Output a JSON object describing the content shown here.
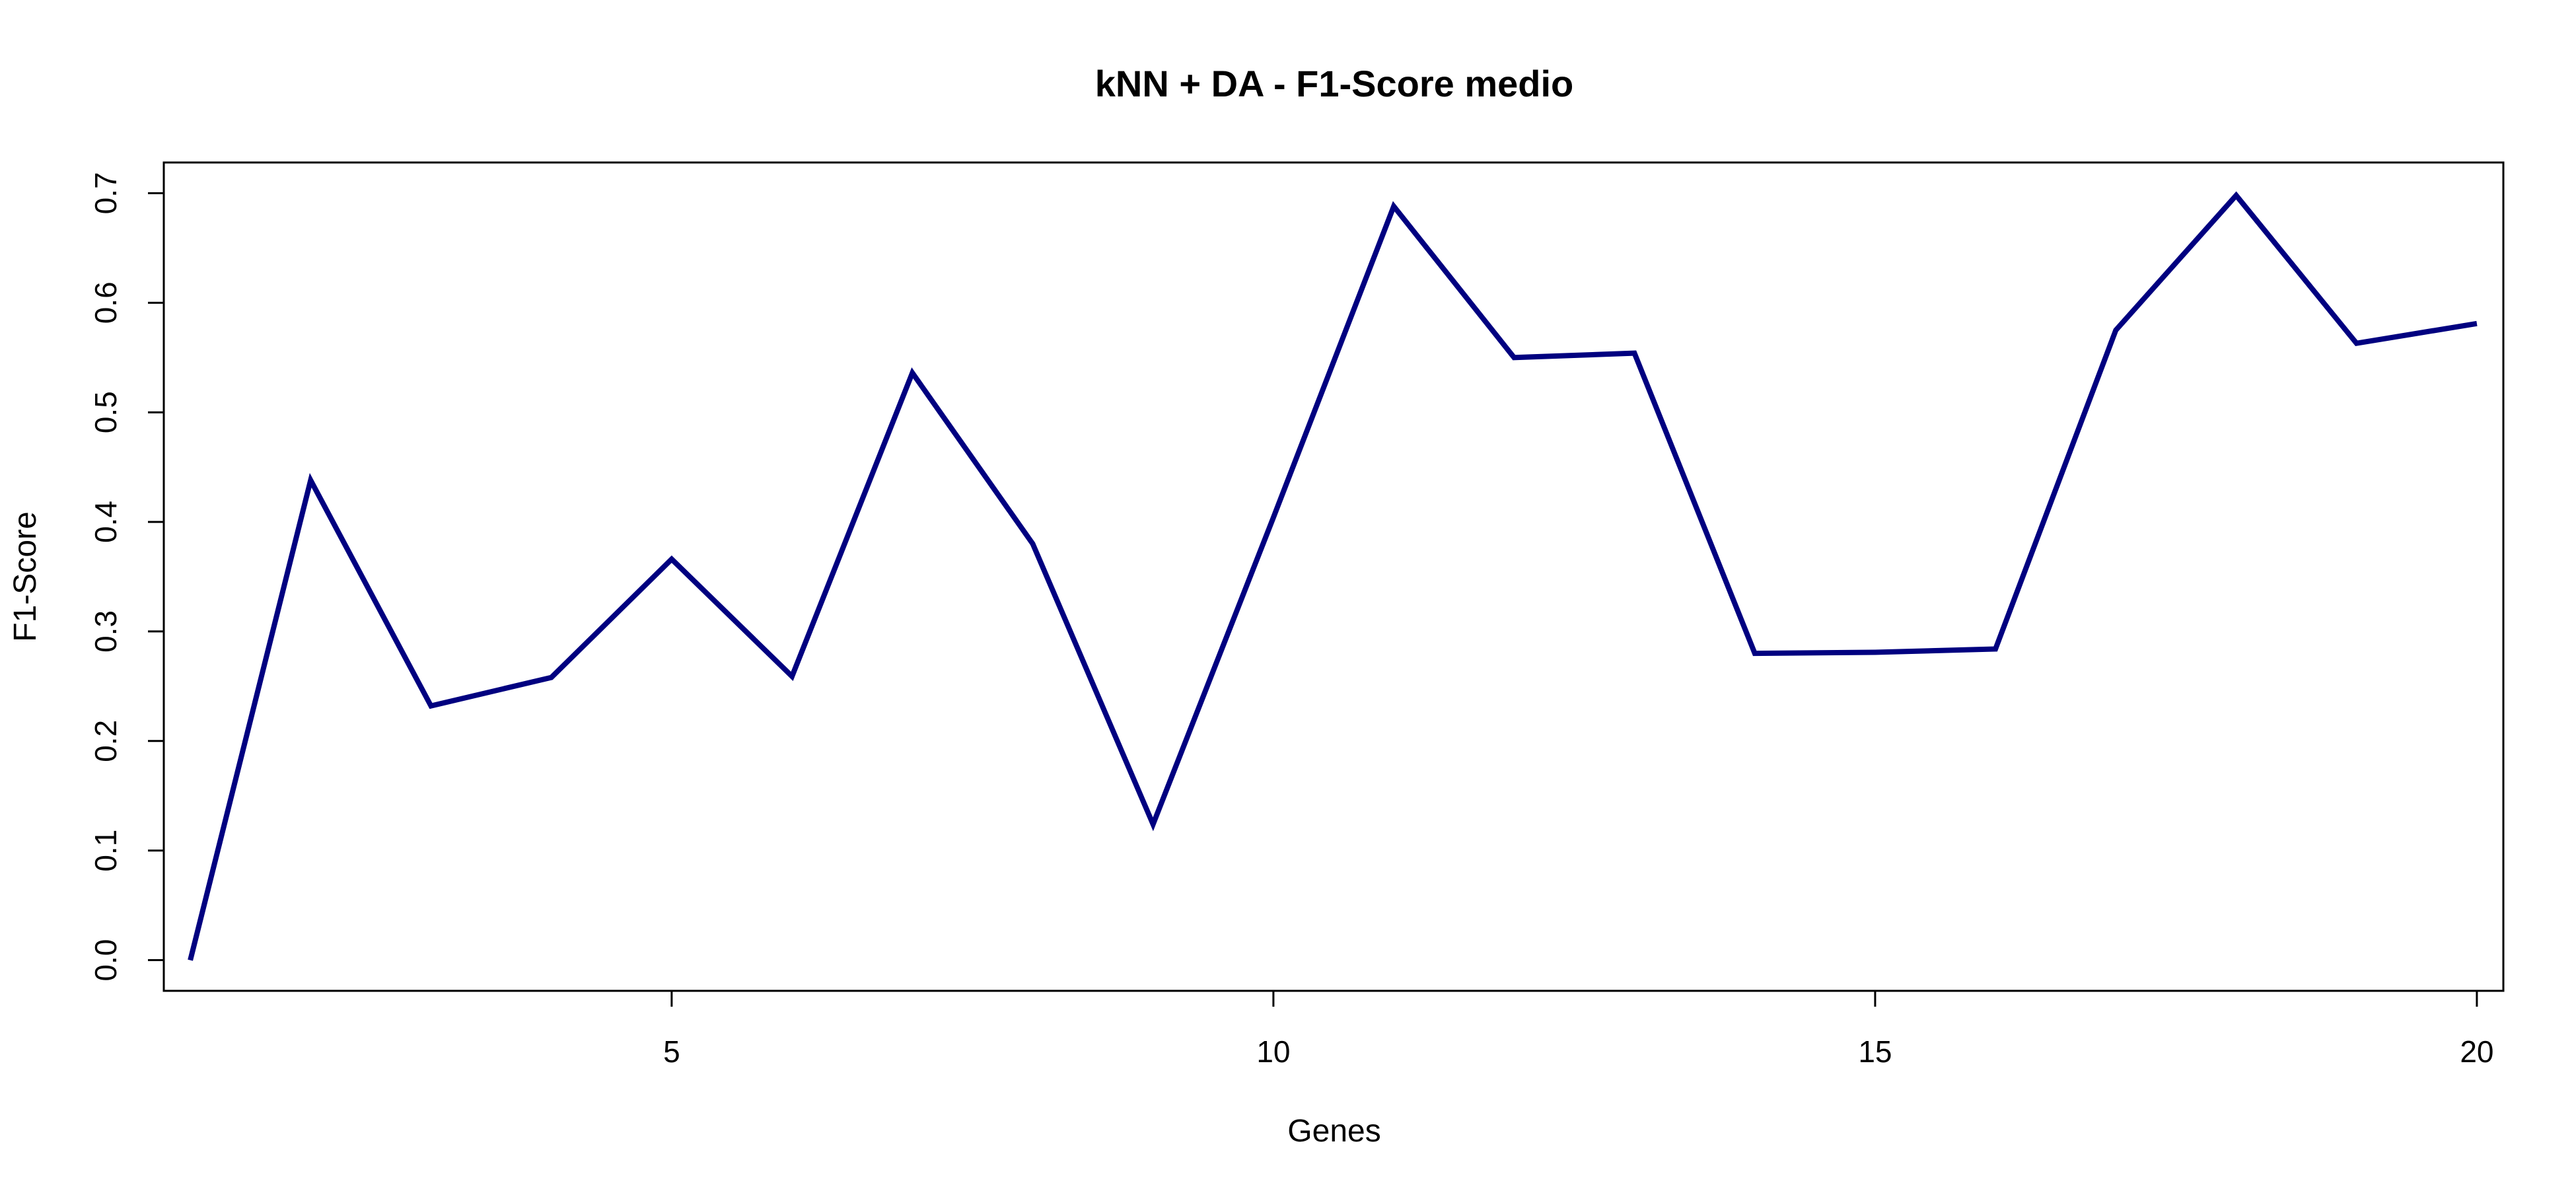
{
  "chart_data": {
    "type": "line",
    "title": "kNN + DA - F1-Score medio",
    "xlabel": "Genes",
    "ylabel": "F1-Score",
    "xlim": [
      0.78,
      20.22
    ],
    "ylim": [
      -0.028,
      0.728
    ],
    "x_ticks": [
      5,
      10,
      15,
      20
    ],
    "x_tick_labels": [
      "5",
      "10",
      "15",
      "20"
    ],
    "y_ticks": [
      0.0,
      0.1,
      0.2,
      0.3,
      0.4,
      0.5,
      0.6,
      0.7
    ],
    "y_tick_labels": [
      "0.0",
      "0.1",
      "0.2",
      "0.3",
      "0.4",
      "0.5",
      "0.6",
      "0.7"
    ],
    "grid": false,
    "legend": "none",
    "series": [
      {
        "color": "#000080",
        "x": [
          1,
          2,
          3,
          4,
          5,
          6,
          7,
          8,
          9,
          10,
          11,
          12,
          13,
          14,
          15,
          16,
          17,
          18,
          19,
          20
        ],
        "values": [
          0.0,
          0.438,
          0.232,
          0.258,
          0.366,
          0.259,
          0.536,
          0.38,
          0.124,
          0.404,
          0.688,
          0.55,
          0.554,
          0.28,
          0.281,
          0.284,
          0.575,
          0.698,
          0.563,
          0.581
        ]
      }
    ]
  }
}
